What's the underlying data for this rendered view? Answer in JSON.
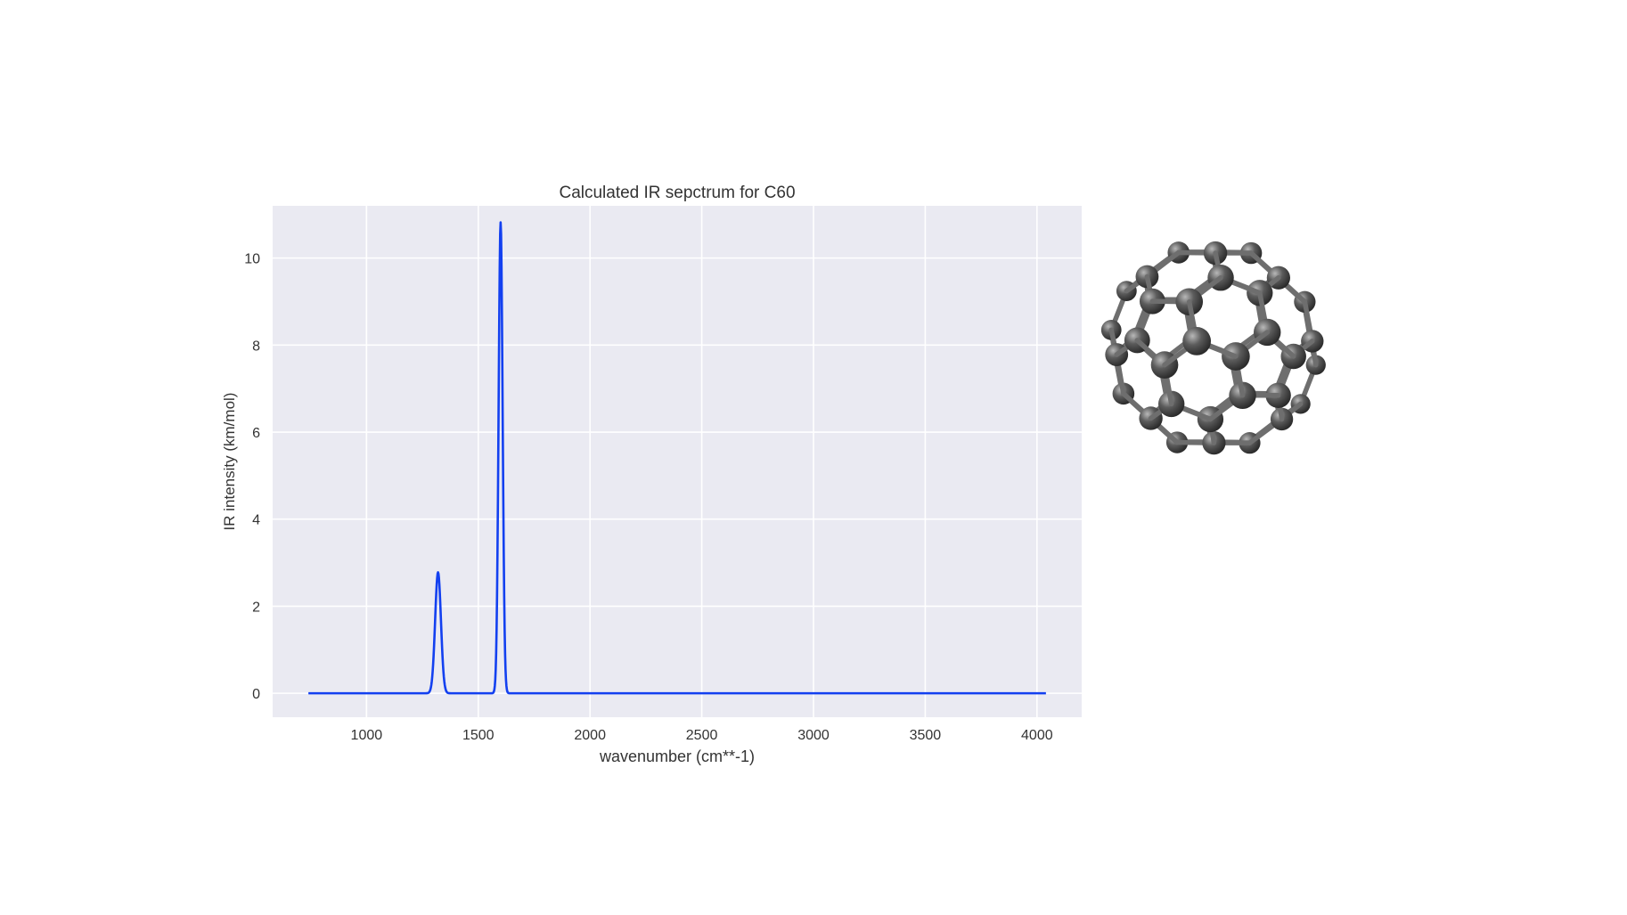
{
  "chart_data": {
    "type": "line",
    "title": "Calculated IR sepctrum for C60",
    "xlabel": "wavenumber (cm**-1)",
    "ylabel": "IR intensity (km/mol)",
    "xlim": [
      580,
      4200
    ],
    "ylim": [
      -0.55,
      11.2
    ],
    "xticks": [
      1000,
      1500,
      2000,
      2500,
      3000,
      3500,
      4000
    ],
    "yticks": [
      0,
      2,
      4,
      6,
      8,
      10
    ],
    "grid": true,
    "legend": "none",
    "series": [
      {
        "color": "#1340f0",
        "x_range": [
          740,
          4040
        ],
        "peaks": [
          {
            "center": 1320,
            "intensity": 2.78,
            "width": 13
          },
          {
            "center": 1600,
            "intensity": 10.82,
            "width": 9
          }
        ]
      }
    ]
  },
  "molecule": {
    "icon": "c60-buckyball-icon",
    "atom_color": "#5a5a5a",
    "bond_color": "#6e6e6e"
  }
}
